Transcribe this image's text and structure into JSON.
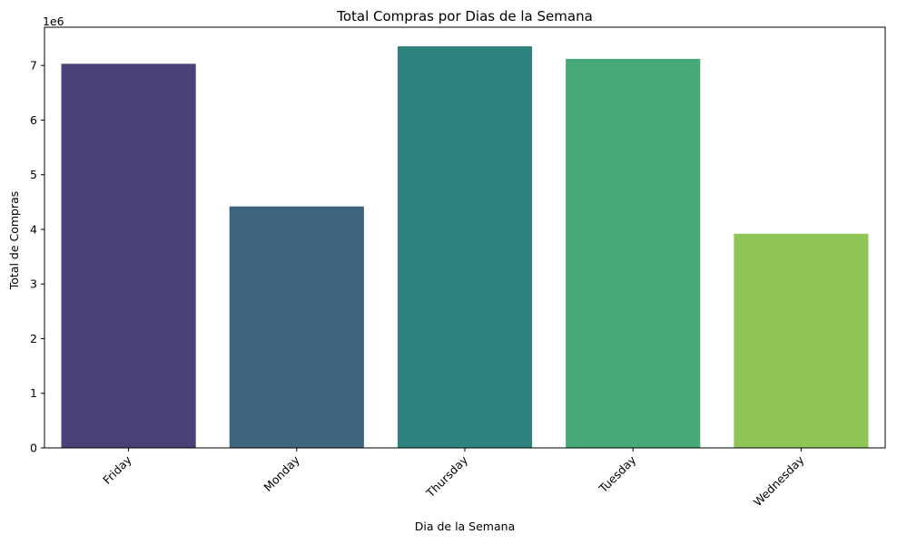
{
  "chart_data": {
    "type": "bar",
    "title": "Total Compras por Dias de la Semana",
    "xlabel": "Dia de la Semana",
    "ylabel": "Total de Compras",
    "y_offset_label": "1e6",
    "y_scale_factor": 1000000,
    "categories": [
      "Friday",
      "Monday",
      "Thursday",
      "Tuesday",
      "Wednesday"
    ],
    "values": [
      7030000,
      4420000,
      7350000,
      7120000,
      3920000
    ],
    "colors": [
      "#4a4178",
      "#3d6580",
      "#2e837e",
      "#47a878",
      "#8fc556"
    ],
    "ylim": [
      0,
      7700000
    ],
    "yticks": [
      0,
      1,
      2,
      3,
      4,
      5,
      6,
      7
    ],
    "grid": false,
    "legend": "none"
  }
}
